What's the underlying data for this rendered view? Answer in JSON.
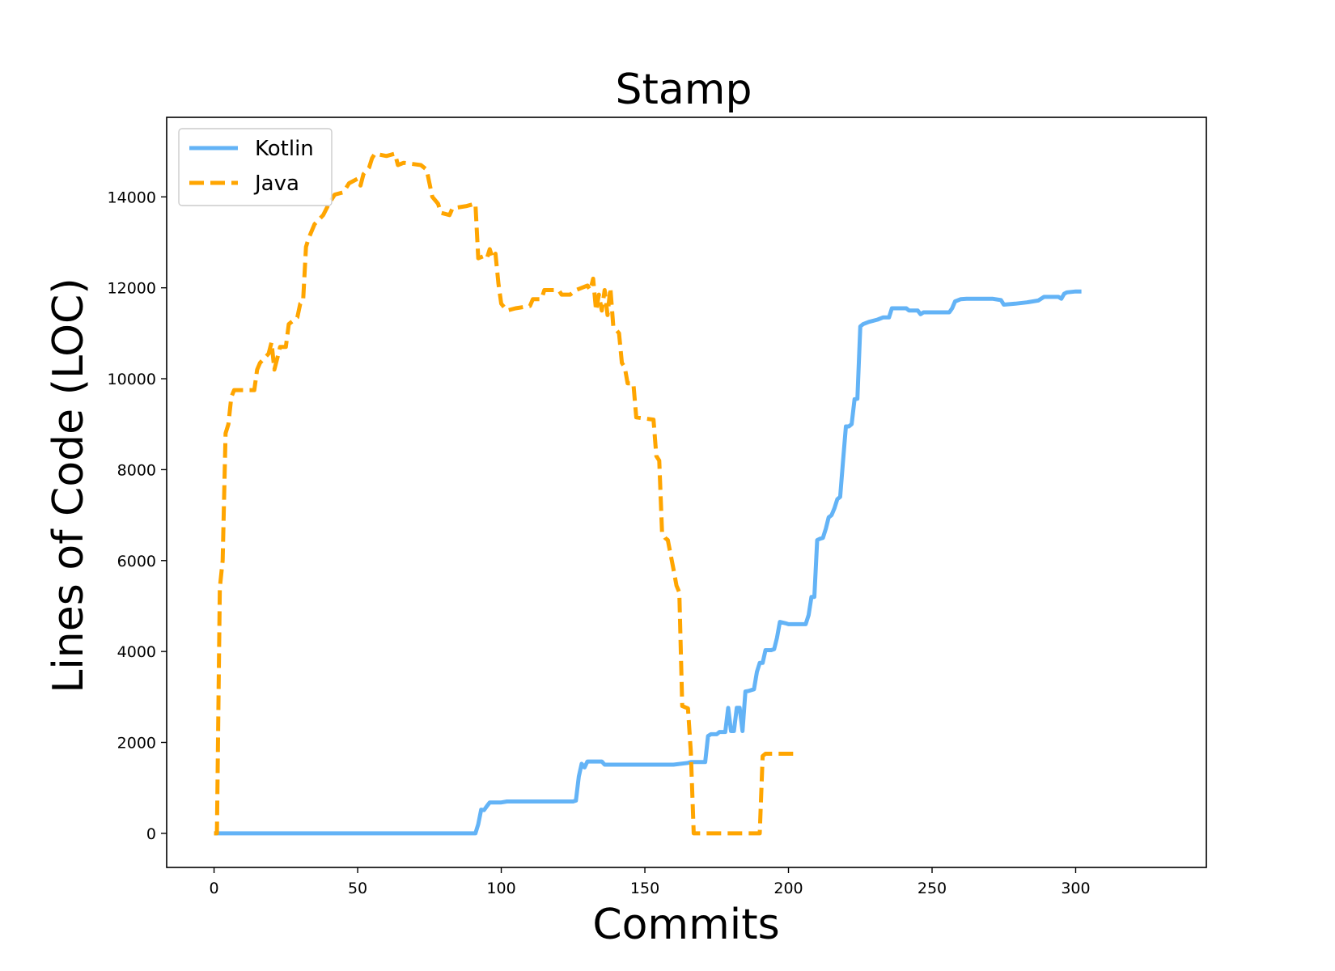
{
  "chart_data": {
    "type": "line",
    "title": "Stamp",
    "xlabel": "Commits",
    "ylabel": "Lines of Code (LOC)",
    "xlim": [
      -16.5,
      345.5
    ],
    "ylim": [
      -750,
      15750
    ],
    "xticks": [
      0,
      50,
      100,
      150,
      200,
      250,
      300
    ],
    "yticks": [
      0,
      2000,
      4000,
      6000,
      8000,
      10000,
      12000,
      14000
    ],
    "grid": false,
    "legend_position": "top-left",
    "series": [
      {
        "name": "Kotlin",
        "color": "#63b3f6",
        "style": "solid",
        "points": [
          [
            0,
            0
          ],
          [
            91,
            0
          ],
          [
            92,
            200
          ],
          [
            93,
            520
          ],
          [
            94,
            510
          ],
          [
            95,
            600
          ],
          [
            96,
            680
          ],
          [
            100,
            680
          ],
          [
            102,
            700
          ],
          [
            125,
            700
          ],
          [
            126,
            720
          ],
          [
            127,
            1250
          ],
          [
            128,
            1530
          ],
          [
            129,
            1450
          ],
          [
            130,
            1580
          ],
          [
            135,
            1580
          ],
          [
            136,
            1510
          ],
          [
            160,
            1510
          ],
          [
            165,
            1550
          ],
          [
            166,
            1570
          ],
          [
            171,
            1570
          ],
          [
            172,
            2140
          ],
          [
            173,
            2180
          ],
          [
            175,
            2180
          ],
          [
            176,
            2230
          ],
          [
            178,
            2230
          ],
          [
            179,
            2760
          ],
          [
            180,
            2250
          ],
          [
            181,
            2250
          ],
          [
            182,
            2760
          ],
          [
            183,
            2760
          ],
          [
            184,
            2250
          ],
          [
            185,
            3120
          ],
          [
            186,
            3130
          ],
          [
            188,
            3170
          ],
          [
            189,
            3550
          ],
          [
            190,
            3750
          ],
          [
            191,
            3750
          ],
          [
            192,
            4030
          ],
          [
            194,
            4030
          ],
          [
            195,
            4050
          ],
          [
            196,
            4300
          ],
          [
            197,
            4650
          ],
          [
            199,
            4620
          ],
          [
            200,
            4600
          ],
          [
            206,
            4600
          ],
          [
            207,
            4800
          ],
          [
            208,
            5200
          ],
          [
            209,
            5200
          ],
          [
            210,
            6450
          ],
          [
            211,
            6480
          ],
          [
            212,
            6500
          ],
          [
            213,
            6700
          ],
          [
            214,
            6950
          ],
          [
            215,
            7000
          ],
          [
            216,
            7150
          ],
          [
            217,
            7350
          ],
          [
            218,
            7400
          ],
          [
            219,
            8200
          ],
          [
            220,
            8950
          ],
          [
            221,
            8950
          ],
          [
            222,
            9000
          ],
          [
            223,
            9550
          ],
          [
            224,
            9560
          ],
          [
            225,
            11150
          ],
          [
            226,
            11200
          ],
          [
            228,
            11250
          ],
          [
            231,
            11300
          ],
          [
            233,
            11350
          ],
          [
            235,
            11350
          ],
          [
            236,
            11550
          ],
          [
            241,
            11550
          ],
          [
            242,
            11500
          ],
          [
            245,
            11500
          ],
          [
            246,
            11420
          ],
          [
            247,
            11460
          ],
          [
            256,
            11460
          ],
          [
            257,
            11550
          ],
          [
            258,
            11700
          ],
          [
            260,
            11750
          ],
          [
            262,
            11760
          ],
          [
            271,
            11760
          ],
          [
            274,
            11730
          ],
          [
            275,
            11630
          ],
          [
            279,
            11650
          ],
          [
            283,
            11680
          ],
          [
            287,
            11720
          ],
          [
            289,
            11800
          ],
          [
            294,
            11800
          ],
          [
            295,
            11760
          ],
          [
            296,
            11870
          ],
          [
            297,
            11900
          ],
          [
            300,
            11920
          ],
          [
            302,
            11920
          ]
        ]
      },
      {
        "name": "Java",
        "color": "#ffa500",
        "style": "dashed",
        "points": [
          [
            0,
            0
          ],
          [
            1,
            0
          ],
          [
            2,
            5400
          ],
          [
            3,
            6000
          ],
          [
            4,
            8800
          ],
          [
            5,
            9000
          ],
          [
            6,
            9600
          ],
          [
            7,
            9750
          ],
          [
            14,
            9750
          ],
          [
            15,
            10200
          ],
          [
            16,
            10350
          ],
          [
            19,
            10550
          ],
          [
            20,
            10800
          ],
          [
            21,
            10200
          ],
          [
            22,
            10450
          ],
          [
            23,
            10700
          ],
          [
            25,
            10700
          ],
          [
            26,
            11200
          ],
          [
            29,
            11350
          ],
          [
            30,
            11650
          ],
          [
            31,
            11700
          ],
          [
            32,
            12900
          ],
          [
            33,
            13100
          ],
          [
            35,
            13400
          ],
          [
            38,
            13600
          ],
          [
            40,
            13850
          ],
          [
            42,
            14050
          ],
          [
            45,
            14100
          ],
          [
            47,
            14300
          ],
          [
            50,
            14400
          ],
          [
            51,
            14250
          ],
          [
            52,
            14500
          ],
          [
            54,
            14650
          ],
          [
            55,
            14850
          ],
          [
            56,
            14950
          ],
          [
            60,
            14900
          ],
          [
            63,
            14950
          ],
          [
            64,
            14700
          ],
          [
            66,
            14750
          ],
          [
            72,
            14700
          ],
          [
            74,
            14600
          ],
          [
            75,
            14300
          ],
          [
            76,
            14000
          ],
          [
            78,
            13850
          ],
          [
            79,
            13650
          ],
          [
            82,
            13600
          ],
          [
            83,
            13750
          ],
          [
            88,
            13800
          ],
          [
            91,
            13850
          ],
          [
            92,
            12650
          ],
          [
            94,
            12700
          ],
          [
            95,
            12650
          ],
          [
            96,
            12850
          ],
          [
            97,
            12650
          ],
          [
            98,
            12750
          ],
          [
            99,
            12100
          ],
          [
            100,
            11650
          ],
          [
            102,
            11500
          ],
          [
            105,
            11550
          ],
          [
            110,
            11600
          ],
          [
            111,
            11750
          ],
          [
            114,
            11750
          ],
          [
            115,
            11950
          ],
          [
            120,
            11950
          ],
          [
            121,
            11850
          ],
          [
            124,
            11850
          ],
          [
            126,
            11950
          ],
          [
            130,
            12050
          ],
          [
            131,
            11950
          ],
          [
            132,
            12200
          ],
          [
            133,
            11500
          ],
          [
            134,
            11850
          ],
          [
            135,
            11500
          ],
          [
            136,
            11950
          ],
          [
            137,
            11400
          ],
          [
            138,
            12000
          ],
          [
            139,
            11150
          ],
          [
            141,
            11000
          ],
          [
            142,
            10350
          ],
          [
            143,
            10250
          ],
          [
            144,
            9900
          ],
          [
            146,
            9900
          ],
          [
            147,
            9150
          ],
          [
            153,
            9100
          ],
          [
            154,
            8300
          ],
          [
            155,
            8200
          ],
          [
            156,
            6600
          ],
          [
            157,
            6500
          ],
          [
            158,
            6450
          ],
          [
            160,
            5800
          ],
          [
            161,
            5450
          ],
          [
            162,
            5300
          ],
          [
            163,
            2800
          ],
          [
            165,
            2750
          ],
          [
            166,
            1800
          ],
          [
            167,
            0
          ],
          [
            190,
            0
          ],
          [
            191,
            1700
          ],
          [
            192,
            1750
          ],
          [
            196,
            1750
          ],
          [
            202,
            1750
          ]
        ]
      }
    ]
  }
}
